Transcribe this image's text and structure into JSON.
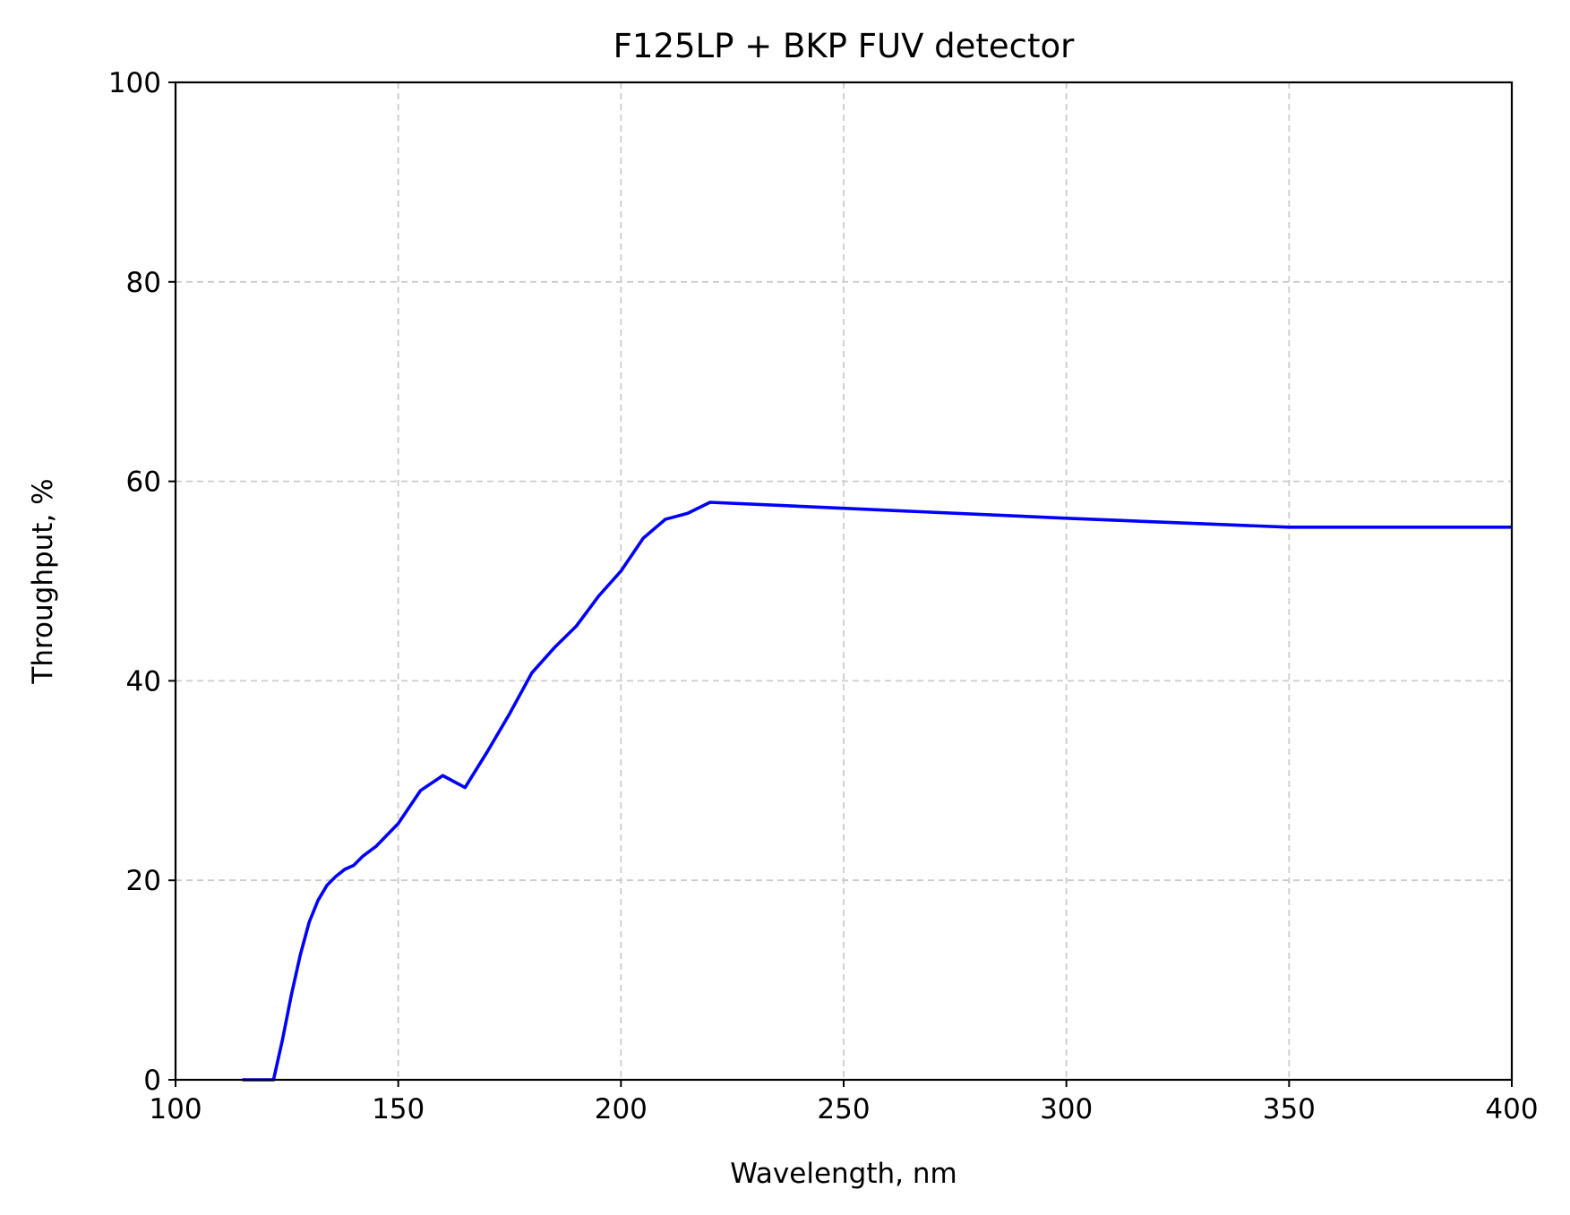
{
  "chart_data": {
    "type": "line",
    "title": "F125LP + BKP FUV detector",
    "xlabel": "Wavelength, nm",
    "ylabel": "Throughput, %",
    "xlim": [
      100,
      400
    ],
    "ylim": [
      0,
      100
    ],
    "xticks": [
      "100",
      "150",
      "200",
      "250",
      "300",
      "350",
      "400"
    ],
    "yticks": [
      "0",
      "20",
      "40",
      "60",
      "80",
      "100"
    ],
    "grid": true,
    "line_color": "#0000ff",
    "series": [
      {
        "x": [
          115,
          120,
          122,
          124,
          126,
          128,
          130,
          132,
          134,
          136,
          138,
          140,
          142,
          145,
          150,
          155,
          160,
          165,
          170,
          175,
          180,
          185,
          190,
          195,
          200,
          205,
          210,
          215,
          220,
          300,
          350,
          400
        ],
        "y": [
          0,
          0,
          0,
          4,
          8.5,
          12.5,
          15.8,
          18,
          19.5,
          20.4,
          21.1,
          21.5,
          22.4,
          23.4,
          25.7,
          29,
          30.5,
          29.3,
          32.9,
          36.7,
          40.8,
          43.3,
          45.5,
          48.5,
          51,
          54.3,
          56.2,
          56.8,
          57.9,
          56.3,
          55.4,
          55.4
        ]
      }
    ]
  }
}
